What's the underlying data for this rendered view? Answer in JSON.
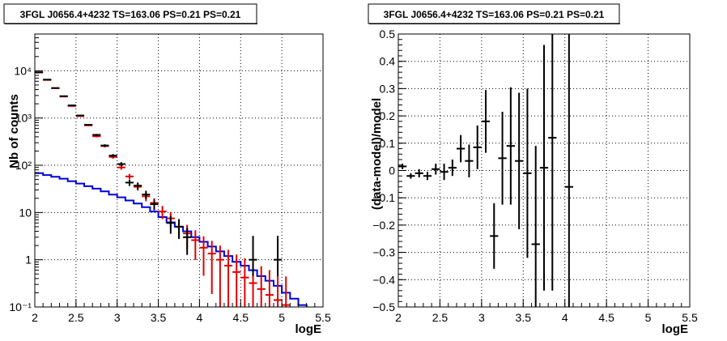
{
  "colors": {
    "data": "#000000",
    "model": "#e00000",
    "background_model": "#0000dd"
  },
  "chart_data": [
    {
      "type": "scatter",
      "title": "3FGL J0656.4+4232 TS=163.06 PS=0.21 PS=0.21",
      "xlabel": "logE",
      "ylabel": "Nb of counts",
      "xlim": [
        2,
        5.5
      ],
      "ylim": [
        0.1,
        60000
      ],
      "yscale": "log",
      "grid": true,
      "xticks": [
        "2",
        "2.5",
        "3",
        "3.5",
        "4",
        "4.5",
        "5",
        "5.5"
      ],
      "yticks": [
        "10⁻¹",
        "1",
        "10",
        "10²",
        "10³",
        "10⁴"
      ],
      "series": [
        {
          "role": "data",
          "color": "#000000",
          "points": [
            {
              "x": 2.05,
              "y": 9300
            },
            {
              "x": 2.15,
              "y": 6500
            },
            {
              "x": 2.25,
              "y": 4300
            },
            {
              "x": 2.35,
              "y": 2900
            },
            {
              "x": 2.45,
              "y": 1850
            },
            {
              "x": 2.55,
              "y": 1130
            },
            {
              "x": 2.65,
              "y": 720
            },
            {
              "x": 2.75,
              "y": 440
            },
            {
              "x": 2.85,
              "y": 262
            },
            {
              "x": 2.95,
              "y": 160
            },
            {
              "x": 3.05,
              "y": 106
            },
            {
              "x": 3.15,
              "y": 43
            },
            {
              "x": 3.25,
              "y": 37
            },
            {
              "x": 3.35,
              "y": 24
            },
            {
              "x": 3.45,
              "y": 15
            },
            {
              "x": 3.65,
              "y": 6
            },
            {
              "x": 3.75,
              "y": 5
            },
            {
              "x": 3.85,
              "y": 3
            },
            {
              "x": 4.65,
              "y": 1,
              "yerr_lo": 0.55,
              "yerr_hi": 2.2
            },
            {
              "x": 4.95,
              "y": 1,
              "yerr_lo": 0.55,
              "yerr_hi": 2.2
            }
          ]
        },
        {
          "role": "model",
          "color": "#e00000",
          "points": [
            {
              "x": 2.05,
              "y": 9200
            },
            {
              "x": 2.15,
              "y": 6400
            },
            {
              "x": 2.25,
              "y": 4300
            },
            {
              "x": 2.35,
              "y": 2850
            },
            {
              "x": 2.45,
              "y": 1800
            },
            {
              "x": 2.55,
              "y": 1100
            },
            {
              "x": 2.65,
              "y": 700
            },
            {
              "x": 2.75,
              "y": 410
            },
            {
              "x": 2.85,
              "y": 255
            },
            {
              "x": 2.95,
              "y": 150
            },
            {
              "x": 3.05,
              "y": 90
            },
            {
              "x": 3.15,
              "y": 58
            },
            {
              "x": 3.25,
              "y": 35
            },
            {
              "x": 3.35,
              "y": 22
            },
            {
              "x": 3.45,
              "y": 16
            },
            {
              "x": 3.55,
              "y": 10.5
            },
            {
              "x": 3.65,
              "y": 7.5
            },
            {
              "x": 3.75,
              "y": 5
            },
            {
              "x": 3.85,
              "y": 3.6
            },
            {
              "x": 3.95,
              "y": 2.6
            },
            {
              "x": 4.05,
              "y": 1.8
            },
            {
              "x": 4.15,
              "y": 1.35
            },
            {
              "x": 4.25,
              "y": 1
            },
            {
              "x": 4.35,
              "y": 0.75
            },
            {
              "x": 4.45,
              "y": 0.55
            },
            {
              "x": 4.55,
              "y": 0.42
            },
            {
              "x": 4.65,
              "y": 0.32
            },
            {
              "x": 4.75,
              "y": 0.24
            },
            {
              "x": 4.85,
              "y": 0.18
            },
            {
              "x": 4.95,
              "y": 0.14
            },
            {
              "x": 5.05,
              "y": 0.11
            }
          ]
        },
        {
          "role": "background_model",
          "color": "#0000dd",
          "step": true,
          "edges": [
            2.0,
            2.1,
            2.2,
            2.3,
            2.4,
            2.5,
            2.6,
            2.7,
            2.8,
            2.9,
            3.0,
            3.1,
            3.2,
            3.3,
            3.4,
            3.5,
            3.6,
            3.7,
            3.8,
            3.9,
            4.0,
            4.1,
            4.2,
            4.3,
            4.4,
            4.5,
            4.6,
            4.7,
            4.8,
            4.9,
            5.0,
            5.1,
            5.2,
            5.3
          ],
          "values": [
            68,
            62,
            57,
            52,
            46,
            41,
            36,
            32,
            28,
            24,
            21,
            18,
            15.5,
            13,
            10.5,
            8,
            6.2,
            5,
            4,
            3,
            2.4,
            1.9,
            1.5,
            1.2,
            0.9,
            0.75,
            0.6,
            0.45,
            0.36,
            0.28,
            0.2,
            0.15,
            0.11
          ]
        }
      ]
    },
    {
      "type": "scatter",
      "title": "3FGL J0656.4+4232 TS=163.06 PS=0.21 PS=0.21",
      "xlabel": "logE",
      "ylabel": "(data-model)/model",
      "xlim": [
        2,
        5.5
      ],
      "ylim": [
        -0.5,
        0.5
      ],
      "grid": true,
      "xticks": [
        "2",
        "2.5",
        "3",
        "3.5",
        "4",
        "4.5",
        "5",
        "5.5"
      ],
      "yticks": [
        "−0.5",
        "−0.4",
        "−0.3",
        "−0.2",
        "−0.1",
        "0",
        "0.1",
        "0.2",
        "0.3",
        "0.4",
        "0.5"
      ],
      "series": [
        {
          "role": "residuals",
          "color": "#000000",
          "points": [
            {
              "x": 2.05,
              "y": 0.015,
              "yerr": 0.01
            },
            {
              "x": 2.15,
              "y": -0.02,
              "yerr": 0.01
            },
            {
              "x": 2.25,
              "y": -0.01,
              "yerr": 0.015
            },
            {
              "x": 2.35,
              "y": -0.02,
              "yerr": 0.015
            },
            {
              "x": 2.45,
              "y": 0.005,
              "yerr": 0.02
            },
            {
              "x": 2.55,
              "y": -0.005,
              "yerr": 0.03
            },
            {
              "x": 2.65,
              "y": 0.01,
              "yerr": 0.03
            },
            {
              "x": 2.75,
              "y": 0.08,
              "yerr": 0.05
            },
            {
              "x": 2.85,
              "y": 0.035,
              "yerr": 0.06
            },
            {
              "x": 2.95,
              "y": 0.085,
              "yerr": 0.08
            },
            {
              "x": 3.05,
              "y": 0.18,
              "yerr": 0.115
            },
            {
              "x": 3.15,
              "y": -0.24,
              "yerr": 0.12
            },
            {
              "x": 3.25,
              "y": 0.045,
              "yerr": 0.17
            },
            {
              "x": 3.35,
              "y": 0.09,
              "yerr": 0.215
            },
            {
              "x": 3.45,
              "y": 0.035,
              "yerr": 0.25
            },
            {
              "x": 3.55,
              "y": -0.01,
              "yerr": 0.31
            },
            {
              "x": 3.65,
              "y": -0.27,
              "yerr": 0.36
            },
            {
              "x": 3.75,
              "y": 0.01,
              "yerr": 0.45
            },
            {
              "x": 3.85,
              "y": 0.12,
              "yerr": 0.56
            },
            {
              "x": 4.05,
              "y": -0.06,
              "yerr": 0.8
            }
          ]
        }
      ]
    }
  ]
}
